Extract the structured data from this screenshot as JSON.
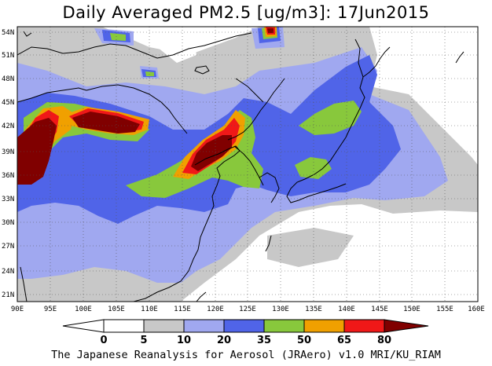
{
  "title": "Daily Averaged PM2.5 [ug/m3]: 17Jun2015",
  "lat_labels": [
    "54N",
    "51N",
    "48N",
    "45N",
    "42N",
    "39N",
    "36N",
    "33N",
    "30N",
    "27N",
    "24N",
    "21N"
  ],
  "lon_labels": [
    "90E",
    "95E",
    "100E",
    "105E",
    "110E",
    "115E",
    "120E",
    "125E",
    "130E",
    "135E",
    "140E",
    "145E",
    "150E",
    "155E",
    "160E"
  ],
  "colorbar": {
    "levels": [
      "0",
      "5",
      "10",
      "20",
      "35",
      "50",
      "65",
      "80"
    ],
    "colors": [
      "#ffffff",
      "#c8c8c8",
      "#a0a8f0",
      "#5064e8",
      "#88c83c",
      "#f0a000",
      "#f01818",
      "#800000"
    ]
  },
  "footer": "The Japanese Reanalysis for Aerosol (JRAero) v1.0 MRI/KU_RIAM"
}
